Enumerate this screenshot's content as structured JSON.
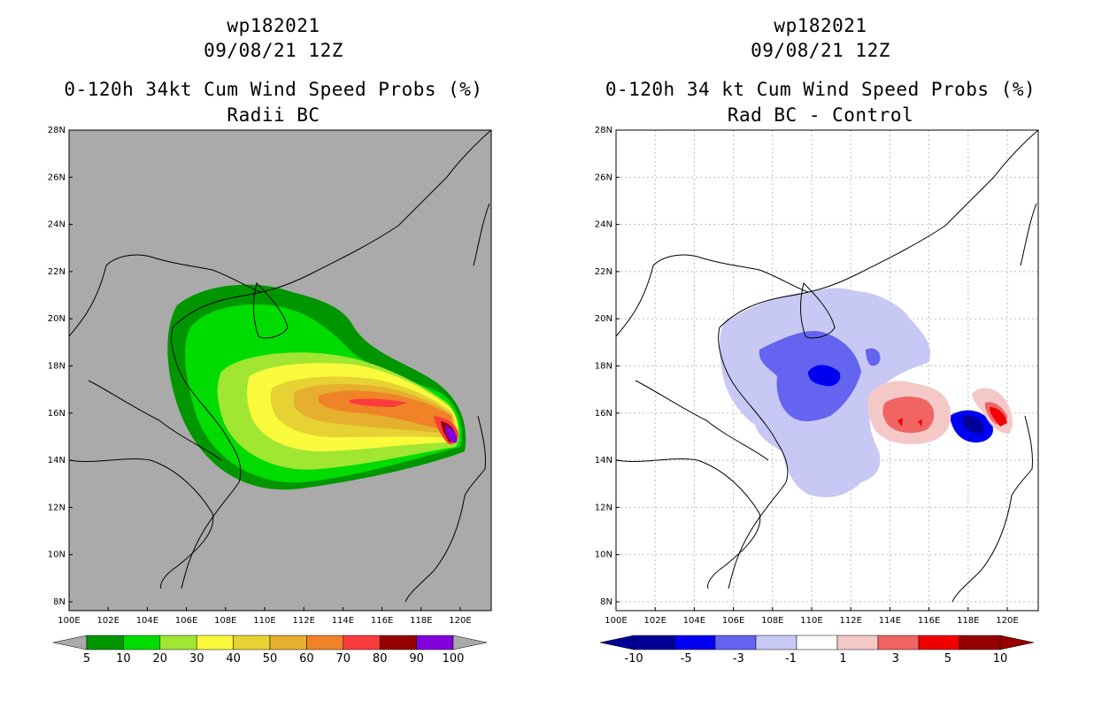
{
  "left": {
    "title_line1": "wp182021",
    "title_line2": "09/08/21 12Z",
    "title_line3": "0-120h 34kt Cum Wind Speed Probs (%)",
    "title_line4": "Radii BC",
    "colorbar": {
      "labels": [
        "5",
        "10",
        "20",
        "30",
        "40",
        "50",
        "60",
        "70",
        "80",
        "90",
        "100"
      ],
      "colors": [
        "#009600",
        "#00dc00",
        "#a0e632",
        "#fafa3c",
        "#e6d232",
        "#e6af2d",
        "#f08228",
        "#fa3c3c",
        "#960000",
        "#8200dc"
      ]
    }
  },
  "right": {
    "title_line1": "wp182021",
    "title_line2": "09/08/21 12Z",
    "title_line3": "0-120h 34 kt Cum Wind Speed Probs (%)",
    "title_line4": "Rad BC - Control",
    "colorbar": {
      "labels": [
        "-10",
        "-5",
        "-3",
        "-1",
        "1",
        "3",
        "5",
        "10"
      ],
      "colors": [
        "#000096",
        "#0000f0",
        "#6464f0",
        "#c8c8f5",
        "#ffffff",
        "#f5c8c8",
        "#f06464",
        "#f00000",
        "#960000"
      ]
    }
  },
  "axes": {
    "lat_labels": [
      "28N",
      "26N",
      "24N",
      "22N",
      "20N",
      "18N",
      "16N",
      "14N",
      "12N",
      "10N",
      "8N"
    ],
    "lon_labels": [
      "100E",
      "102E",
      "104E",
      "106E",
      "108E",
      "110E",
      "112E",
      "114E",
      "116E",
      "118E",
      "120E"
    ]
  },
  "colors": {
    "land_bg": "#aaaaaa",
    "grid": "#bbbbbb"
  }
}
